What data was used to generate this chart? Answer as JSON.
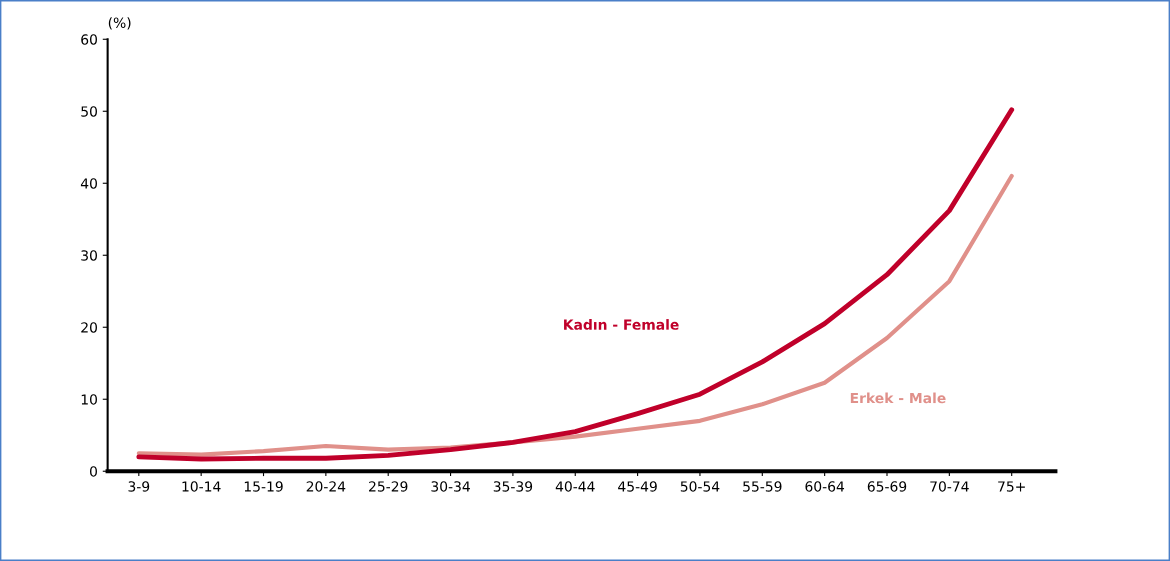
{
  "chart_data": {
    "type": "line",
    "ylabel": "(%)",
    "categories": [
      "3-9",
      "10-14",
      "15-19",
      "20-24",
      "25-29",
      "30-34",
      "35-39",
      "40-44",
      "45-49",
      "50-54",
      "55-59",
      "60-64",
      "65-69",
      "70-74",
      "75+"
    ],
    "series": [
      {
        "name": "Kadın - Female",
        "color": "#c0002a",
        "values": [
          2.0,
          1.7,
          1.8,
          1.8,
          2.2,
          3.0,
          4.0,
          5.5,
          8.0,
          10.7,
          15.2,
          20.5,
          27.3,
          36.2,
          50.2
        ]
      },
      {
        "name": "Erkek - Male",
        "color": "#e0908a",
        "values": [
          2.5,
          2.3,
          2.8,
          3.5,
          3.0,
          3.3,
          4.0,
          4.8,
          5.9,
          7.0,
          9.3,
          12.3,
          18.5,
          26.4,
          41.0
        ]
      }
    ],
    "ylim": [
      0,
      60
    ],
    "yticks": [
      0,
      10,
      20,
      30,
      40,
      50,
      60
    ],
    "grid": false,
    "legend": false,
    "line_style": "solid",
    "marker": "none"
  }
}
